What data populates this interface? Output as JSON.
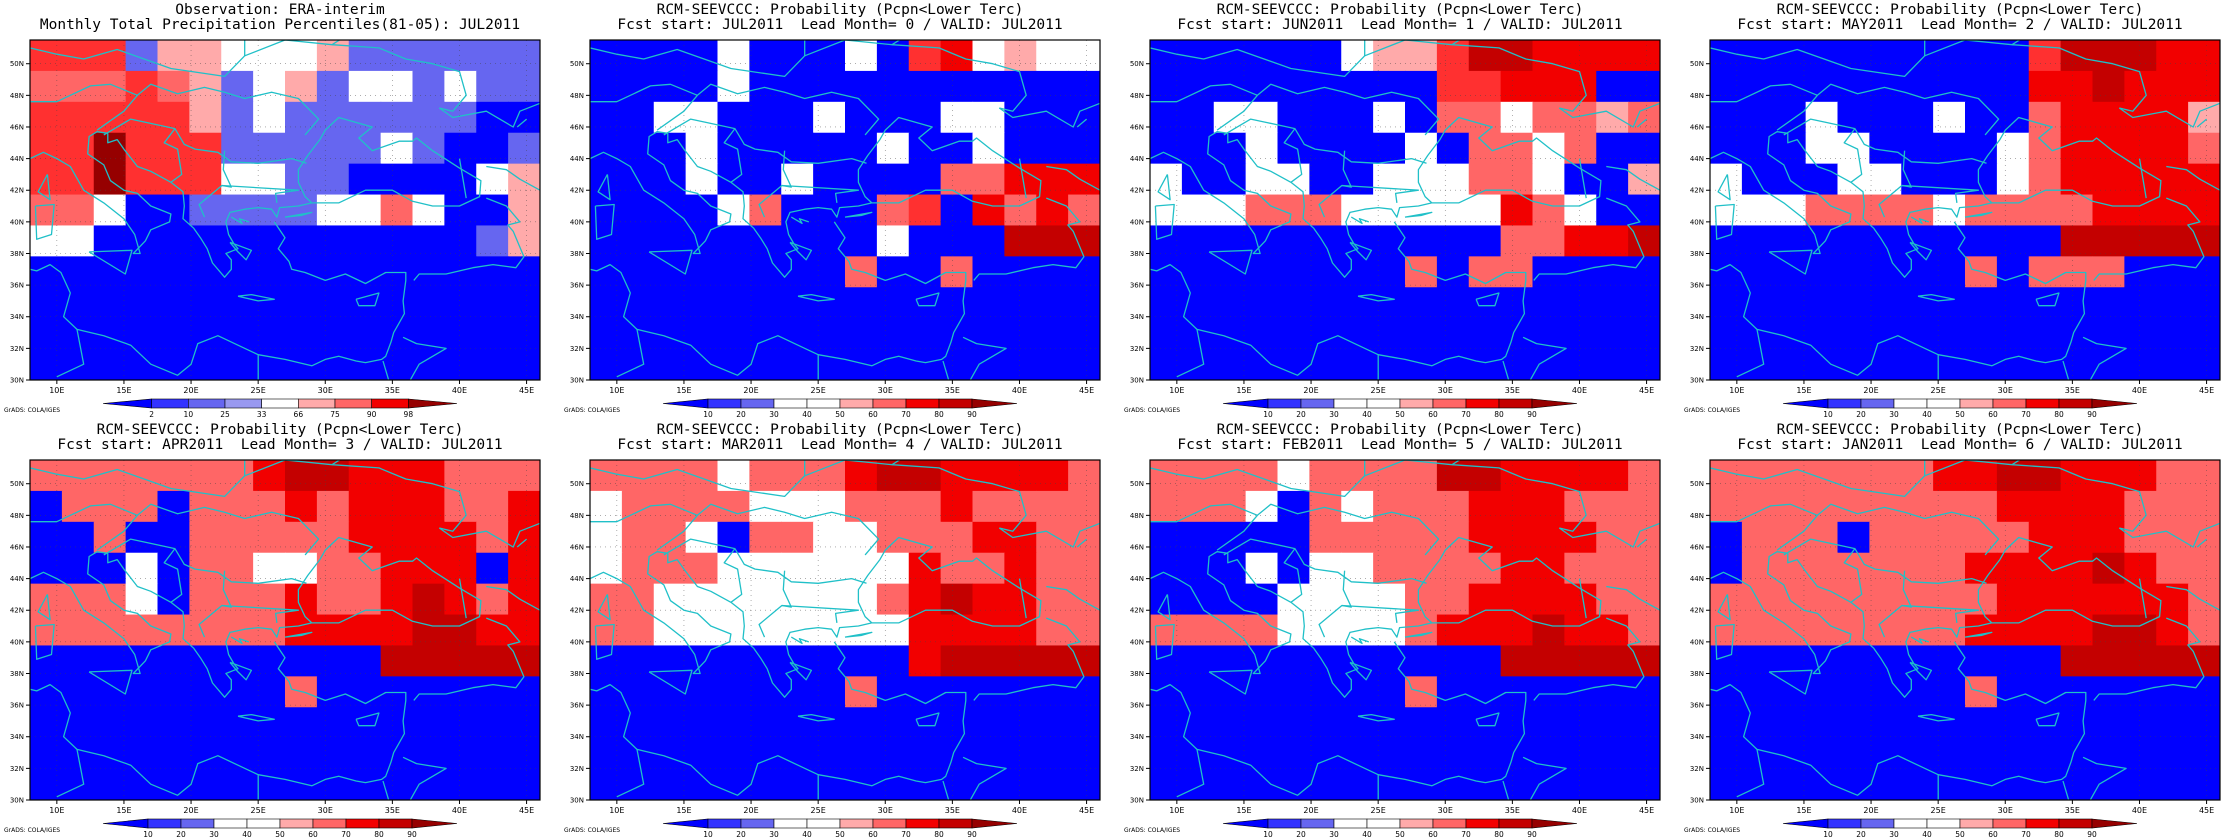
{
  "colors": {
    "cyan": "#20c0c8",
    "blue": "#0000ff",
    "ramp": [
      "#0000ff",
      "#3333ff",
      "#6666f0",
      "#9999f0",
      "#ffffff",
      "#ffaaaa",
      "#ff6666",
      "#ff3030",
      "#f20000",
      "#c40000",
      "#960000"
    ]
  },
  "axes": {
    "xticks": [
      "10E",
      "15E",
      "20E",
      "25E",
      "30E",
      "35E",
      "40E",
      "45E"
    ],
    "yticks": [
      "30N",
      "32N",
      "34N",
      "36N",
      "38N",
      "40N",
      "42N",
      "44N",
      "46N",
      "48N",
      "50N"
    ]
  },
  "credit": "GrADS: COLA/IGES",
  "panels": [
    {
      "title1": "Observation: ERA-interim",
      "title2": "Monthly Total Precipitation Percentiles(81-05): JUL2011",
      "colorbar_labels": [
        "2",
        "10",
        "25",
        "33",
        "66",
        "75",
        "90",
        "98"
      ],
      "cb_type": "pct",
      "grid": [
        "ppptww...wtttttt",
        "mmmpmwt.wt..t.tt",
        "pppppwt.ttttttbb",
        "ppPpppttttt.tbbt",
        "ppPppp..ttbbbb.w",
        "mm.bbtttt..m.bbw",
        "..bbbbbbbbbbbbtw",
        "bbbbbbbbbbbbbbbb",
        "bbbbbbbbbbbbbbbb",
        "bbbbbbbbbbbbbbbb",
        "bbbbbbbbbbbbbbbb"
      ]
    },
    {
      "title1": "RCM-SEEVCCC: Probability (Pcpn<Lower Terc)",
      "title2": "Fcst start: JUL2011  Lead Month= 0 / VALID: JUL2011",
      "colorbar_labels": [
        "10",
        "20",
        "30",
        "40",
        "50",
        "60",
        "70",
        "80",
        "90"
      ],
      "cb_type": "prob",
      "grid": [
        "bbbb.bbb.bpr.w..",
        "bbbb.bbbbbbbbbbb",
        "bb..bbb.bbb..bbb",
        "bbb.bbbbb.bb.bbb",
        "bbb.bb.bbbbmmrrr",
        "bbbb.mbbbmpbrmrm",
        "bbbbbbbbb.bbbRRR",
        "bbbbbbbbmbbmbbbb",
        "bbbbbbbbbbbbbbbb",
        "bbbbbbbbbbbbbbbb",
        "bbbbbbbbbbbbbbbb"
      ]
    },
    {
      "title1": "RCM-SEEVCCC: Probability (Pcpn<Lower Terc)",
      "title2": "Fcst start: JUN2011  Lead Month= 1 / VALID: JUL2011",
      "colorbar_labels": [
        "10",
        "20",
        "30",
        "40",
        "50",
        "60",
        "70",
        "80",
        "90"
      ],
      "cb_type": "prob",
      "grid": [
        "bbbbbb.wwpRRrrrr",
        "bbbbbbbbbpprrrbb",
        "bb..bbb.bmm.mmwm",
        "bbb.bbbb.bmm.mbb",
        ".bb..bb...mm.bbw",
        "...mmm.....rm.bb",
        "bbbbbbbbbbbmmrrR",
        "bbbbbbbbmbmmbbbb",
        "bbbbbbbbbbbbbbbb",
        "bbbbbbbbbbbbbbbb",
        "bbbbbbbbbbbbbbbb"
      ]
    },
    {
      "title1": "RCM-SEEVCCC: Probability (Pcpn<Lower Terc)",
      "title2": "Fcst start: MAY2011  Lead Month= 2 / VALID: JUL2011",
      "colorbar_labels": [
        "10",
        "20",
        "30",
        "40",
        "50",
        "60",
        "70",
        "80",
        "90"
      ],
      "cb_type": "prob",
      "grid": [
        "bbbbbbbbbbpRRRrr",
        "bbbbbbbbbbrrRrrr",
        "bbb.bbb.bbmrrrrw",
        "bbb..bbbb.mrrrrm",
        ".bbb..bbb.mrrrrr",
        "...mmmm.mmmmrrrr",
        "bbbbbbbbbbbRRRRR",
        "bbbbbbbbmbmmmbbb",
        "bbbbbbbbbbbbbbbb",
        "bbbbbbbbbbbbbbbb",
        "bbbbbbbbbbbbbbbb"
      ]
    },
    {
      "title1": "RCM-SEEVCCC: Probability (Pcpn<Lower Terc)",
      "title2": "Fcst start: APR2011  Lead Month= 3 / VALID: JUL2011",
      "colorbar_labels": [
        "10",
        "20",
        "30",
        "40",
        "50",
        "60",
        "70",
        "80",
        "90"
      ],
      "cb_type": "prob",
      "grid": [
        "mmmmmmmrRRrrrmmm",
        "bmmmbmmmrmrrrmmr",
        "bbmbbmmmmmrrrrmr",
        "bbb.bmm..mmrrrbr",
        "mmm.bmmmrmmrRrmr",
        "mmmmmmmmrrrrRRrr",
        "bbbbbbbbbbbRRRRR",
        "bbbbbbbbmbbbbbbb",
        "bbbbbbbbbbbbbbbb",
        "bbbbbbbbbbbbbbbb",
        "bbbbbbbbbbbbbbbb"
      ]
    },
    {
      "title1": "RCM-SEEVCCC: Probability (Pcpn<Lower Terc)",
      "title2": "Fcst start: MAR2011  Lead Month= 4 / VALID: JUL2011",
      "colorbar_labels": [
        "10",
        "20",
        "30",
        "40",
        "50",
        "60",
        "70",
        "80",
        "90"
      ],
      "cb_type": "prob",
      "grid": [
        "mmmm.mmmrRRrrrrm",
        ".mmmm...mmmrmmmm",
        ".mm.bmm..mmmrrmm",
        ".mmm......rmmrmm",
        "mm.......mrRrrmm",
        "mm........rrrrmm",
        "bbbbbbbbbbrRRRRR",
        "bbbbbbbbmbbbbbbb",
        "bbbbbbbbbbbbbbbb",
        "bbbbbbbbbbbbbbbb",
        "bbbbbbbbbbbbbbbb"
      ]
    },
    {
      "title1": "RCM-SEEVCCC: Probability (Pcpn<Lower Terc)",
      "title2": "Fcst start: FEB2011  Lead Month= 5 / VALID: JUL2011",
      "colorbar_labels": [
        "10",
        "20",
        "30",
        "40",
        "50",
        "60",
        "70",
        "80",
        "90"
      ],
      "cb_type": "prob",
      "grid": [
        "mmmm.mmmmRRrrrrm",
        "mmm.bm.mmmrrrmmm",
        "bbbbbmmmmmrrrrmm",
        "bbb.b..mmmmrrmmm",
        "bbbb....mmrrrrmm",
        "mmmm....mrrrRrrm",
        "bbbbbbbbbbbRRRRR",
        "bbbbbbbbmbbbbbbb",
        "bbbbbbbbbbbbbbbb",
        "bbbbbbbbbbbbbbbb",
        "bbbbbbbbbbbbbbbb"
      ]
    },
    {
      "title1": "RCM-SEEVCCC: Probability (Pcpn<Lower Terc)",
      "title2": "Fcst start: JAN2011  Lead Month= 6 / VALID: JUL2011",
      "colorbar_labels": [
        "10",
        "20",
        "30",
        "40",
        "50",
        "60",
        "70",
        "80",
        "90"
      ],
      "cb_type": "prob",
      "grid": [
        "mmmmmmmrrRRrrrmm",
        "mmmmmmmmmrrrrmmm",
        "bmmmbmmmmmrrrmmm",
        "bmmmmmmmrrrrRrmm",
        "mmmmmmmmmrrrrrrm",
        "mmmmmmmmrrrrRRrm",
        "bbbbbbbbbbbRRRRR",
        "bbbbbbbbmbbbbbbb",
        "bbbbbbbbbbbbbbbb",
        "bbbbbbbbbbbbbbbb",
        "bbbbbbbbbbbbbbbb"
      ]
    }
  ]
}
